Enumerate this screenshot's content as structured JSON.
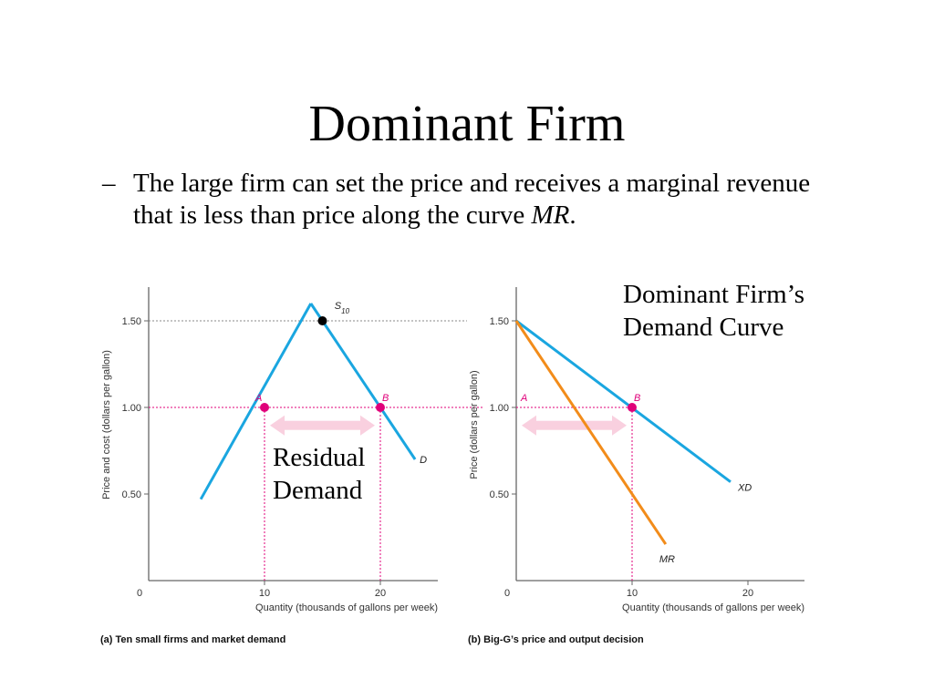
{
  "slide": {
    "title": "Dominant Firm",
    "bullet_dash": "–",
    "bullet_text": "The large firm can set the price and receives a marginal revenue that is less than price along the curve ",
    "bullet_mr": "MR",
    "bullet_end": "."
  },
  "callouts": {
    "dominant_line1": "Dominant Firm’s",
    "dominant_line2": "Demand Curve",
    "residual_line1": "Residual",
    "residual_line2": "Demand"
  },
  "colors": {
    "blue_curve": "#1aa6e0",
    "orange_curve": "#f28c1a",
    "pink_points": "#e0007a",
    "pink_arrow": "#f9d0df",
    "axis": "#666666",
    "gray_dotted": "#888888"
  },
  "chart_data": [
    {
      "type": "line",
      "panel": "a",
      "caption": "(a) Ten small firms and market demand",
      "xlabel": "Quantity (thousands of gallons per week)",
      "ylabel": "Price and cost (dollars per gallon)",
      "xlim": [
        0,
        25
      ],
      "ylim": [
        0,
        1.7
      ],
      "x_ticks": [
        10,
        20
      ],
      "y_ticks": [
        0.5,
        1.0,
        1.5
      ],
      "x_tick_labels": [
        "10",
        "20"
      ],
      "y_tick_labels": [
        "0.50",
        "1.00",
        "1.50"
      ],
      "origin_label": "0",
      "series": [
        {
          "name": "S10",
          "label_main": "S",
          "label_sub": "10",
          "points": [
            [
              4.5,
              0.47
            ],
            [
              14.0,
              1.6
            ]
          ]
        },
        {
          "name": "D",
          "label_main": "D",
          "points": [
            [
              14.0,
              1.6
            ],
            [
              23.0,
              0.7
            ]
          ]
        }
      ],
      "marked_points": [
        {
          "label": "A",
          "x": 10,
          "y": 1.0
        },
        {
          "label": "B",
          "x": 20,
          "y": 1.0
        },
        {
          "label": "",
          "x": 15,
          "y": 1.5
        }
      ],
      "double_arrow": {
        "from_x": 10,
        "to_x": 20,
        "y": 0.97
      }
    },
    {
      "type": "line",
      "panel": "b",
      "caption": "(b) Big-G’s price and output decision",
      "xlabel": "Quantity (thousands of gallons per week)",
      "ylabel": "Price (dollars per gallon)",
      "xlim": [
        0,
        25
      ],
      "ylim": [
        0,
        1.7
      ],
      "x_ticks": [
        10,
        20
      ],
      "y_ticks": [
        0.5,
        1.0,
        1.5
      ],
      "x_tick_labels": [
        "10",
        "20"
      ],
      "y_tick_labels": [
        "0.50",
        "1.00",
        "1.50"
      ],
      "origin_label": "0",
      "series": [
        {
          "name": "XD",
          "label_main": "XD",
          "points": [
            [
              0,
              1.5
            ],
            [
              18.5,
              0.57
            ]
          ]
        },
        {
          "name": "MR",
          "label_main": "MR",
          "points": [
            [
              0,
              1.5
            ],
            [
              12.9,
              0.21
            ]
          ]
        }
      ],
      "marked_points": [
        {
          "label": "A",
          "x": 0,
          "y": 1.0,
          "label_only": true
        },
        {
          "label": "B",
          "x": 10,
          "y": 1.0
        }
      ],
      "double_arrow": {
        "from_x": 0,
        "to_x": 10,
        "y": 0.97
      }
    }
  ]
}
